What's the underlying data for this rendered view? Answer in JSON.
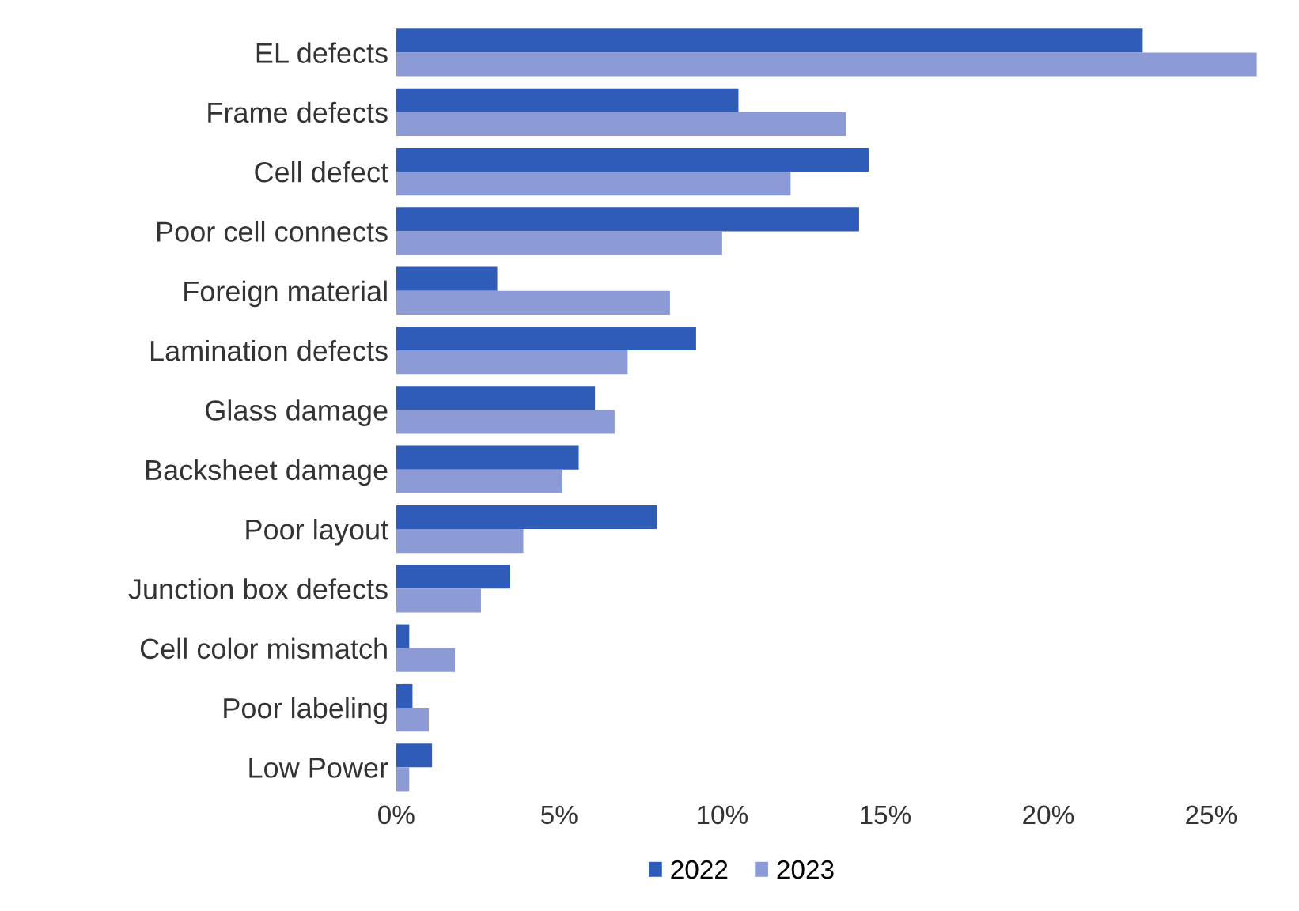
{
  "chart_data": {
    "type": "bar",
    "orientation": "horizontal",
    "categories": [
      "EL defects",
      "Frame defects",
      "Cell defect",
      "Poor cell connects",
      "Foreign material",
      "Lamination defects",
      "Glass damage",
      "Backsheet damage",
      "Poor layout",
      "Junction box defects",
      "Cell color mismatch",
      "Poor labeling",
      "Low Power"
    ],
    "series": [
      {
        "name": "2022",
        "color": "#2e5cb8",
        "values": [
          22.9,
          10.5,
          14.5,
          14.2,
          3.1,
          9.2,
          6.1,
          5.6,
          8.0,
          3.5,
          0.4,
          0.5,
          1.1
        ]
      },
      {
        "name": "2023",
        "color": "#8c9bd6",
        "values": [
          26.4,
          13.8,
          12.1,
          10.0,
          8.4,
          7.1,
          6.7,
          5.1,
          3.9,
          2.6,
          1.8,
          1.0,
          0.4
        ]
      }
    ],
    "xlim": [
      0,
      26.5
    ],
    "xticks": [
      {
        "value": 0,
        "label": "0%"
      },
      {
        "value": 5,
        "label": "5%"
      },
      {
        "value": 10,
        "label": "10%"
      },
      {
        "value": 15,
        "label": "15%"
      },
      {
        "value": 20,
        "label": "20%"
      },
      {
        "value": 25,
        "label": "25%"
      }
    ],
    "grid": false,
    "legend": "bottom"
  }
}
